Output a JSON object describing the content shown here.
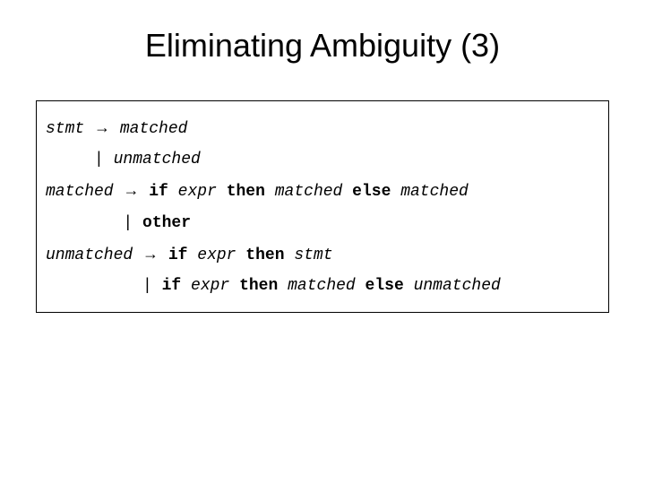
{
  "slide": {
    "title": "Eliminating Ambiguity (3)",
    "title_fontsize": 36,
    "title_color": "#000000",
    "background_color": "#ffffff",
    "grammar": {
      "box_border_color": "#000000",
      "font_family": "Courier New",
      "font_size": 18,
      "text_color": "#000000",
      "arrow": "→",
      "lines": [
        {
          "tokens": [
            {
              "text": "stmt",
              "style": "italic"
            },
            {
              "text": " ",
              "style": "plain"
            },
            {
              "text": "→",
              "style": "arrow"
            },
            {
              "text": " ",
              "style": "plain"
            },
            {
              "text": "matched",
              "style": "italic"
            }
          ]
        },
        {
          "tokens": [
            {
              "text": "     | ",
              "style": "plain"
            },
            {
              "text": "unmatched",
              "style": "italic"
            }
          ]
        },
        {
          "tokens": [
            {
              "text": "matched",
              "style": "italic"
            },
            {
              "text": " ",
              "style": "plain"
            },
            {
              "text": "→",
              "style": "arrow"
            },
            {
              "text": " ",
              "style": "plain"
            },
            {
              "text": "if",
              "style": "bold"
            },
            {
              "text": " ",
              "style": "plain"
            },
            {
              "text": "expr",
              "style": "italic"
            },
            {
              "text": " ",
              "style": "plain"
            },
            {
              "text": "then",
              "style": "bold"
            },
            {
              "text": " ",
              "style": "plain"
            },
            {
              "text": "matched",
              "style": "italic"
            },
            {
              "text": " ",
              "style": "plain"
            },
            {
              "text": "else",
              "style": "bold"
            },
            {
              "text": " ",
              "style": "plain"
            },
            {
              "text": "matched",
              "style": "italic"
            }
          ]
        },
        {
          "tokens": [
            {
              "text": "        | ",
              "style": "plain"
            },
            {
              "text": "other",
              "style": "bold"
            }
          ]
        },
        {
          "tokens": [
            {
              "text": "unmatched",
              "style": "italic"
            },
            {
              "text": " ",
              "style": "plain"
            },
            {
              "text": "→",
              "style": "arrow"
            },
            {
              "text": " ",
              "style": "plain"
            },
            {
              "text": "if",
              "style": "bold"
            },
            {
              "text": " ",
              "style": "plain"
            },
            {
              "text": "expr",
              "style": "italic"
            },
            {
              "text": " ",
              "style": "plain"
            },
            {
              "text": "then",
              "style": "bold"
            },
            {
              "text": " ",
              "style": "plain"
            },
            {
              "text": "stmt",
              "style": "italic"
            }
          ]
        },
        {
          "tokens": [
            {
              "text": "          | ",
              "style": "plain"
            },
            {
              "text": "if",
              "style": "bold"
            },
            {
              "text": " ",
              "style": "plain"
            },
            {
              "text": "expr",
              "style": "italic"
            },
            {
              "text": " ",
              "style": "plain"
            },
            {
              "text": "then",
              "style": "bold"
            },
            {
              "text": " ",
              "style": "plain"
            },
            {
              "text": "matched",
              "style": "italic"
            },
            {
              "text": " ",
              "style": "plain"
            },
            {
              "text": "else",
              "style": "bold"
            },
            {
              "text": " ",
              "style": "plain"
            },
            {
              "text": "unmatched",
              "style": "italic"
            }
          ]
        }
      ]
    }
  }
}
